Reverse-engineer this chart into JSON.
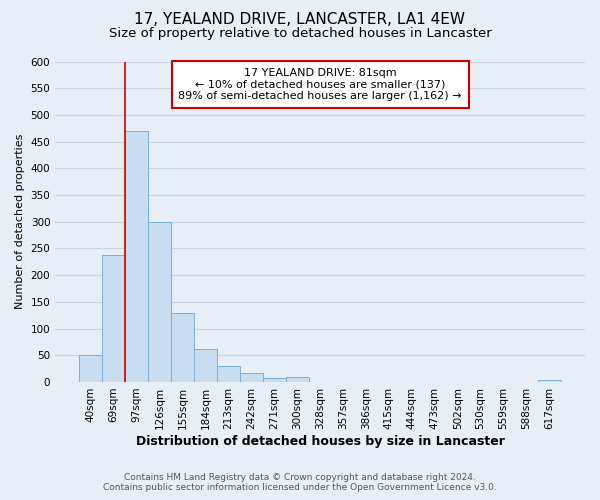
{
  "title": "17, YEALAND DRIVE, LANCASTER, LA1 4EW",
  "subtitle": "Size of property relative to detached houses in Lancaster",
  "xlabel": "Distribution of detached houses by size in Lancaster",
  "ylabel": "Number of detached properties",
  "bar_labels": [
    "40sqm",
    "69sqm",
    "97sqm",
    "126sqm",
    "155sqm",
    "184sqm",
    "213sqm",
    "242sqm",
    "271sqm",
    "300sqm",
    "328sqm",
    "357sqm",
    "386sqm",
    "415sqm",
    "444sqm",
    "473sqm",
    "502sqm",
    "530sqm",
    "559sqm",
    "588sqm",
    "617sqm"
  ],
  "bar_values": [
    50,
    238,
    470,
    300,
    130,
    62,
    30,
    16,
    8,
    10,
    0,
    0,
    0,
    0,
    0,
    0,
    0,
    0,
    0,
    0,
    3
  ],
  "bar_color": "#c8ddf0",
  "bar_edge_color": "#7aafd4",
  "ylim": [
    0,
    600
  ],
  "yticks": [
    0,
    50,
    100,
    150,
    200,
    250,
    300,
    350,
    400,
    450,
    500,
    550,
    600
  ],
  "vline_x": 1.5,
  "vline_color": "#cc0000",
  "annotation_title": "17 YEALAND DRIVE: 81sqm",
  "annotation_line1": "← 10% of detached houses are smaller (137)",
  "annotation_line2": "89% of semi-detached houses are larger (1,162) →",
  "annotation_box_facecolor": "#ffffff",
  "annotation_box_edgecolor": "#cc0000",
  "footer_line1": "Contains HM Land Registry data © Crown copyright and database right 2024.",
  "footer_line2": "Contains public sector information licensed under the Open Government Licence v3.0.",
  "background_color": "#e8eef6",
  "plot_bg_color": "#e8eef6",
  "grid_color": "#c8d4e4",
  "title_fontsize": 11,
  "subtitle_fontsize": 9.5,
  "xlabel_fontsize": 9,
  "ylabel_fontsize": 8,
  "tick_fontsize": 7.5,
  "footer_fontsize": 6.5
}
